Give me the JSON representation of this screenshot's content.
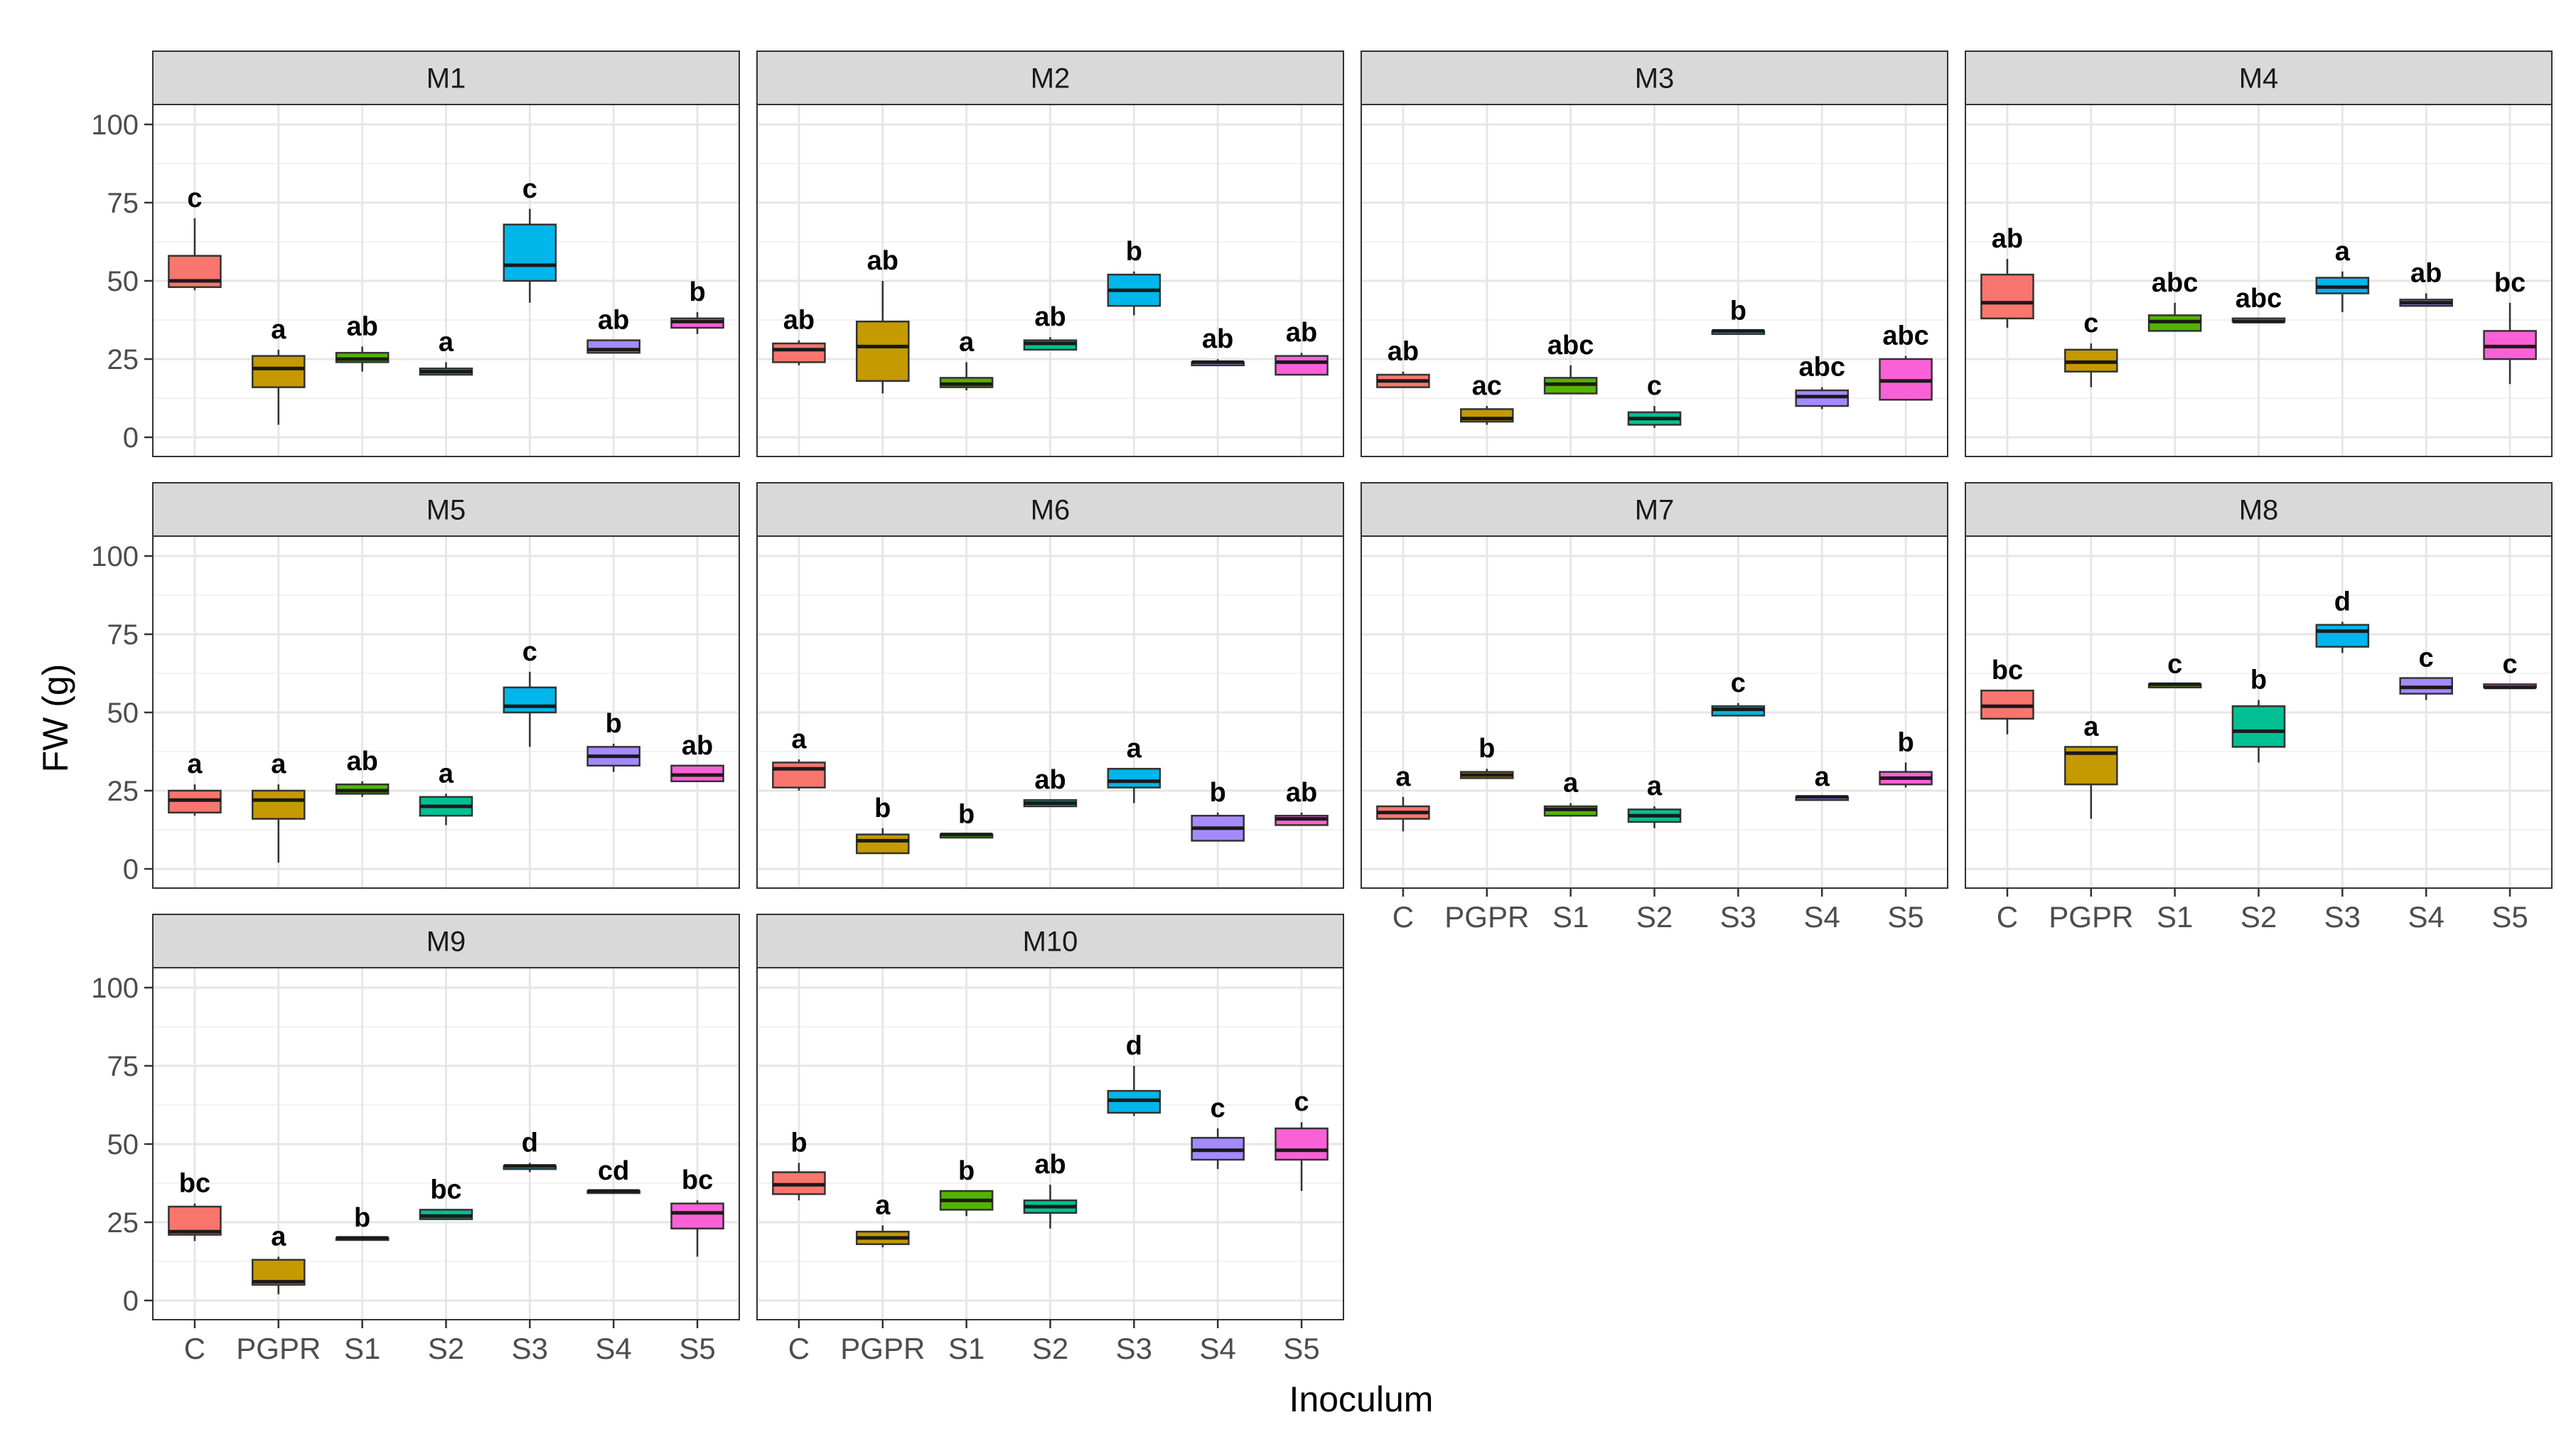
{
  "chart_data": {
    "type": "boxplot",
    "xlabel": "Inoculum",
    "ylabel": "FW (g)",
    "ylim": [
      0,
      100
    ],
    "yticks": [
      0,
      25,
      50,
      75,
      100
    ],
    "categories": [
      "C",
      "PGPR",
      "S1",
      "S2",
      "S3",
      "S4",
      "S5"
    ],
    "colors": {
      "C": "#F8766D",
      "PGPR": "#C49A00",
      "S1": "#53B400",
      "S2": "#00C094",
      "S3": "#00B6EB",
      "S4": "#A58AFF",
      "S5": "#FB61D7"
    },
    "grid": true,
    "legend": "none",
    "panels": [
      {
        "name": "M1",
        "boxes": [
          {
            "cat": "C",
            "min": 47,
            "q1": 48,
            "median": 50,
            "q3": 58,
            "max": 70,
            "label": "c"
          },
          {
            "cat": "PGPR",
            "min": 4,
            "q1": 16,
            "median": 22,
            "q3": 26,
            "max": 28,
            "label": "a"
          },
          {
            "cat": "S1",
            "min": 21,
            "q1": 24,
            "median": 25,
            "q3": 27,
            "max": 29,
            "label": "ab"
          },
          {
            "cat": "S2",
            "min": 20,
            "q1": 20,
            "median": 21,
            "q3": 22,
            "max": 24,
            "label": "a"
          },
          {
            "cat": "S3",
            "min": 43,
            "q1": 50,
            "median": 55,
            "q3": 68,
            "max": 73,
            "label": "c"
          },
          {
            "cat": "S4",
            "min": 27,
            "q1": 27,
            "median": 28,
            "q3": 31,
            "max": 31,
            "label": "ab"
          },
          {
            "cat": "S5",
            "min": 33,
            "q1": 35,
            "median": 37,
            "q3": 38,
            "max": 40,
            "label": "b"
          }
        ]
      },
      {
        "name": "M2",
        "boxes": [
          {
            "cat": "C",
            "min": 23,
            "q1": 24,
            "median": 28,
            "q3": 30,
            "max": 31,
            "label": "ab"
          },
          {
            "cat": "PGPR",
            "min": 14,
            "q1": 18,
            "median": 29,
            "q3": 37,
            "max": 50,
            "label": "ab"
          },
          {
            "cat": "S1",
            "min": 15,
            "q1": 16,
            "median": 17,
            "q3": 19,
            "max": 24,
            "label": "a"
          },
          {
            "cat": "S2",
            "min": 28,
            "q1": 28,
            "median": 30,
            "q3": 31,
            "max": 32,
            "label": "ab"
          },
          {
            "cat": "S3",
            "min": 39,
            "q1": 42,
            "median": 47,
            "q3": 52,
            "max": 53,
            "label": "b"
          },
          {
            "cat": "S4",
            "min": 23,
            "q1": 23,
            "median": 24,
            "q3": 24,
            "max": 25,
            "label": "ab"
          },
          {
            "cat": "S5",
            "min": 20,
            "q1": 20,
            "median": 24,
            "q3": 26,
            "max": 27,
            "label": "ab"
          }
        ]
      },
      {
        "name": "M3",
        "boxes": [
          {
            "cat": "C",
            "min": 16,
            "q1": 16,
            "median": 18,
            "q3": 20,
            "max": 21,
            "label": "ab"
          },
          {
            "cat": "PGPR",
            "min": 4,
            "q1": 5,
            "median": 6,
            "q3": 9,
            "max": 10,
            "label": "ac"
          },
          {
            "cat": "S1",
            "min": 14,
            "q1": 14,
            "median": 17,
            "q3": 19,
            "max": 23,
            "label": "abc"
          },
          {
            "cat": "S2",
            "min": 3,
            "q1": 4,
            "median": 6,
            "q3": 8,
            "max": 10,
            "label": "c"
          },
          {
            "cat": "S3",
            "min": 33,
            "q1": 33,
            "median": 34,
            "q3": 34,
            "max": 34,
            "label": "b"
          },
          {
            "cat": "S4",
            "min": 9,
            "q1": 10,
            "median": 13,
            "q3": 15,
            "max": 16,
            "label": "abc"
          },
          {
            "cat": "S5",
            "min": 12,
            "q1": 12,
            "median": 18,
            "q3": 25,
            "max": 26,
            "label": "abc"
          }
        ]
      },
      {
        "name": "M4",
        "boxes": [
          {
            "cat": "C",
            "min": 35,
            "q1": 38,
            "median": 43,
            "q3": 52,
            "max": 57,
            "label": "ab"
          },
          {
            "cat": "PGPR",
            "min": 16,
            "q1": 21,
            "median": 24,
            "q3": 28,
            "max": 30,
            "label": "c"
          },
          {
            "cat": "S1",
            "min": 34,
            "q1": 34,
            "median": 37,
            "q3": 39,
            "max": 43,
            "label": "abc"
          },
          {
            "cat": "S2",
            "min": 37,
            "q1": 37,
            "median": 37,
            "q3": 38,
            "max": 38,
            "label": "abc"
          },
          {
            "cat": "S3",
            "min": 40,
            "q1": 46,
            "median": 48,
            "q3": 51,
            "max": 53,
            "label": "a"
          },
          {
            "cat": "S4",
            "min": 42,
            "q1": 42,
            "median": 43,
            "q3": 44,
            "max": 46,
            "label": "ab"
          },
          {
            "cat": "S5",
            "min": 17,
            "q1": 25,
            "median": 29,
            "q3": 34,
            "max": 43,
            "label": "bc"
          }
        ]
      },
      {
        "name": "M5",
        "boxes": [
          {
            "cat": "C",
            "min": 17,
            "q1": 18,
            "median": 22,
            "q3": 25,
            "max": 27,
            "label": "a"
          },
          {
            "cat": "PGPR",
            "min": 2,
            "q1": 16,
            "median": 22,
            "q3": 25,
            "max": 27,
            "label": "a"
          },
          {
            "cat": "S1",
            "min": 23,
            "q1": 24,
            "median": 25,
            "q3": 27,
            "max": 28,
            "label": "ab"
          },
          {
            "cat": "S2",
            "min": 14,
            "q1": 17,
            "median": 20,
            "q3": 23,
            "max": 24,
            "label": "a"
          },
          {
            "cat": "S3",
            "min": 39,
            "q1": 50,
            "median": 52,
            "q3": 58,
            "max": 63,
            "label": "c"
          },
          {
            "cat": "S4",
            "min": 31,
            "q1": 33,
            "median": 36,
            "q3": 39,
            "max": 40,
            "label": "b"
          },
          {
            "cat": "S5",
            "min": 28,
            "q1": 28,
            "median": 30,
            "q3": 33,
            "max": 33,
            "label": "ab"
          }
        ]
      },
      {
        "name": "M6",
        "boxes": [
          {
            "cat": "C",
            "min": 25,
            "q1": 26,
            "median": 32,
            "q3": 34,
            "max": 35,
            "label": "a"
          },
          {
            "cat": "PGPR",
            "min": 5,
            "q1": 5,
            "median": 9,
            "q3": 11,
            "max": 13,
            "label": "b"
          },
          {
            "cat": "S1",
            "min": 10,
            "q1": 10,
            "median": 11,
            "q3": 11,
            "max": 11,
            "label": "b"
          },
          {
            "cat": "S2",
            "min": 20,
            "q1": 20,
            "median": 21,
            "q3": 22,
            "max": 22,
            "label": "ab"
          },
          {
            "cat": "S3",
            "min": 21,
            "q1": 26,
            "median": 28,
            "q3": 32,
            "max": 32,
            "label": "a"
          },
          {
            "cat": "S4",
            "min": 9,
            "q1": 9,
            "median": 13,
            "q3": 17,
            "max": 18,
            "label": "b"
          },
          {
            "cat": "S5",
            "min": 14,
            "q1": 14,
            "median": 16,
            "q3": 17,
            "max": 18,
            "label": "ab"
          }
        ]
      },
      {
        "name": "M7",
        "boxes": [
          {
            "cat": "C",
            "min": 12,
            "q1": 16,
            "median": 18,
            "q3": 20,
            "max": 23,
            "label": "a"
          },
          {
            "cat": "PGPR",
            "min": 29,
            "q1": 29,
            "median": 30,
            "q3": 31,
            "max": 32,
            "label": "b"
          },
          {
            "cat": "S1",
            "min": 17,
            "q1": 17,
            "median": 19,
            "q3": 20,
            "max": 21,
            "label": "a"
          },
          {
            "cat": "S2",
            "min": 13,
            "q1": 15,
            "median": 17,
            "q3": 19,
            "max": 20,
            "label": "a"
          },
          {
            "cat": "S3",
            "min": 49,
            "q1": 49,
            "median": 51,
            "q3": 52,
            "max": 53,
            "label": "c"
          },
          {
            "cat": "S4",
            "min": 22,
            "q1": 22,
            "median": 23,
            "q3": 23,
            "max": 23,
            "label": "a"
          },
          {
            "cat": "S5",
            "min": 26,
            "q1": 27,
            "median": 29,
            "q3": 31,
            "max": 34,
            "label": "b"
          }
        ]
      },
      {
        "name": "M8",
        "boxes": [
          {
            "cat": "C",
            "min": 43,
            "q1": 48,
            "median": 52,
            "q3": 57,
            "max": 57,
            "label": "bc"
          },
          {
            "cat": "PGPR",
            "min": 16,
            "q1": 27,
            "median": 37,
            "q3": 39,
            "max": 39,
            "label": "a"
          },
          {
            "cat": "S1",
            "min": 58,
            "q1": 58,
            "median": 59,
            "q3": 59,
            "max": 59,
            "label": "c"
          },
          {
            "cat": "S2",
            "min": 34,
            "q1": 39,
            "median": 44,
            "q3": 52,
            "max": 54,
            "label": "b"
          },
          {
            "cat": "S3",
            "min": 69,
            "q1": 71,
            "median": 76,
            "q3": 78,
            "max": 79,
            "label": "d"
          },
          {
            "cat": "S4",
            "min": 54,
            "q1": 56,
            "median": 58,
            "q3": 61,
            "max": 61,
            "label": "c"
          },
          {
            "cat": "S5",
            "min": 58,
            "q1": 58,
            "median": 58,
            "q3": 59,
            "max": 59,
            "label": "c"
          }
        ]
      },
      {
        "name": "M9",
        "boxes": [
          {
            "cat": "C",
            "min": 19,
            "q1": 21,
            "median": 22,
            "q3": 30,
            "max": 31,
            "label": "bc"
          },
          {
            "cat": "PGPR",
            "min": 2,
            "q1": 5,
            "median": 6,
            "q3": 13,
            "max": 14,
            "label": "a"
          },
          {
            "cat": "S1",
            "min": 20,
            "q1": 20,
            "median": 20,
            "q3": 20,
            "max": 20,
            "label": "b"
          },
          {
            "cat": "S2",
            "min": 26,
            "q1": 26,
            "median": 27,
            "q3": 29,
            "max": 29,
            "label": "bc"
          },
          {
            "cat": "S3",
            "min": 41,
            "q1": 42,
            "median": 43,
            "q3": 43,
            "max": 44,
            "label": "d"
          },
          {
            "cat": "S4",
            "min": 35,
            "q1": 35,
            "median": 35,
            "q3": 35,
            "max": 35,
            "label": "cd"
          },
          {
            "cat": "S5",
            "min": 14,
            "q1": 23,
            "median": 28,
            "q3": 31,
            "max": 32,
            "label": "bc"
          }
        ]
      },
      {
        "name": "M10",
        "boxes": [
          {
            "cat": "C",
            "min": 32,
            "q1": 34,
            "median": 37,
            "q3": 41,
            "max": 44,
            "label": "b"
          },
          {
            "cat": "PGPR",
            "min": 17,
            "q1": 18,
            "median": 20,
            "q3": 22,
            "max": 24,
            "label": "a"
          },
          {
            "cat": "S1",
            "min": 27,
            "q1": 29,
            "median": 32,
            "q3": 35,
            "max": 35,
            "label": "b"
          },
          {
            "cat": "S2",
            "min": 23,
            "q1": 28,
            "median": 30,
            "q3": 32,
            "max": 37,
            "label": "ab"
          },
          {
            "cat": "S3",
            "min": 59,
            "q1": 60,
            "median": 64,
            "q3": 67,
            "max": 75,
            "label": "d"
          },
          {
            "cat": "S4",
            "min": 42,
            "q1": 45,
            "median": 48,
            "q3": 52,
            "max": 55,
            "label": "c"
          },
          {
            "cat": "S5",
            "min": 35,
            "q1": 45,
            "median": 48,
            "q3": 55,
            "max": 57,
            "label": "c"
          }
        ]
      }
    ]
  }
}
